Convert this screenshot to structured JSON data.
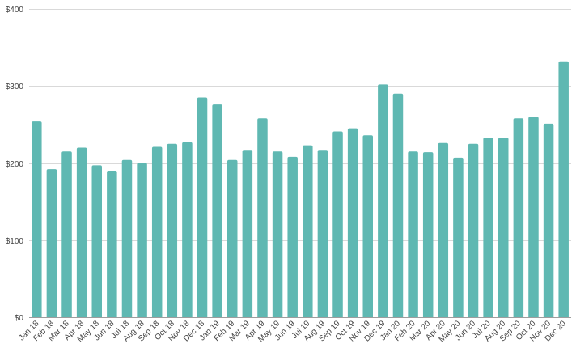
{
  "chart_data": {
    "type": "bar",
    "title": "",
    "xlabel": "",
    "ylabel": "",
    "ylim": [
      0,
      400
    ],
    "yticks": [
      0,
      100,
      200,
      300,
      400
    ],
    "ytick_labels": [
      "$0",
      "$100",
      "$200",
      "$300",
      "$400"
    ],
    "grid": true,
    "legend": "none",
    "bar_color": "#5fb8b2",
    "categories": [
      "Jan 18",
      "Feb 18",
      "Mar 18",
      "Apr 18",
      "May 18",
      "Jun 18",
      "Jul 18",
      "Aug 18",
      "Sep 18",
      "Oct 18",
      "Nov 18",
      "Dec 18",
      "Jan 19",
      "Feb 19",
      "Mar 19",
      "Apr 19",
      "May 19",
      "Jun 19",
      "Jul 19",
      "Aug 19",
      "Sep 19",
      "Oct 19",
      "Nov 19",
      "Dec 19",
      "Jan 20",
      "Feb 20",
      "Mar 20",
      "Apr 20",
      "May 20",
      "Jun 20",
      "Jul 20",
      "Aug 20",
      "Sep 20",
      "Oct 20",
      "Nov 20",
      "Dec 20"
    ],
    "values": [
      254,
      192,
      215,
      220,
      197,
      190,
      204,
      200,
      221,
      225,
      227,
      285,
      276,
      204,
      217,
      258,
      215,
      208,
      223,
      217,
      241,
      245,
      236,
      302,
      290,
      215,
      214,
      226,
      207,
      225,
      233,
      233,
      258,
      260,
      251,
      332
    ]
  }
}
